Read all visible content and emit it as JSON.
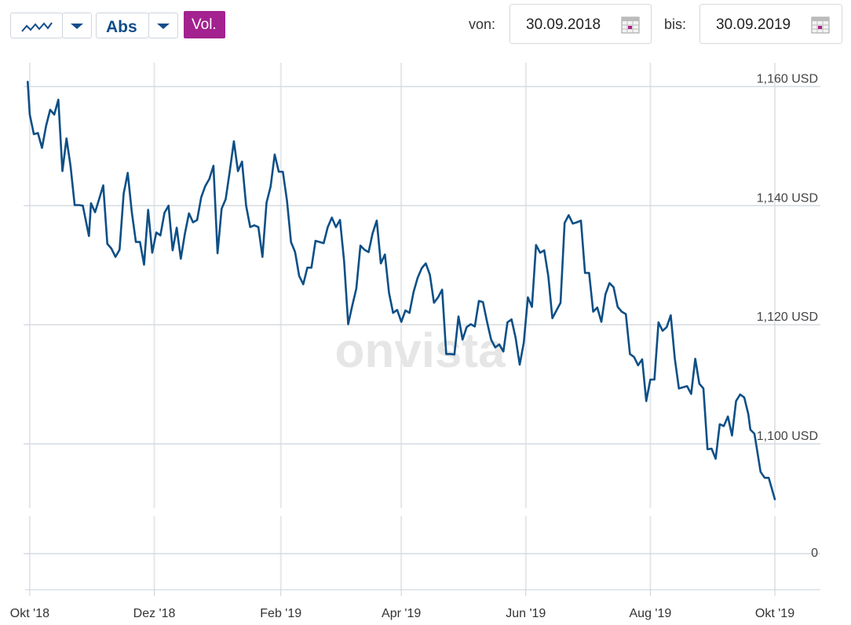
{
  "toolbar": {
    "chart_mode": "Abs",
    "volume_button": "Vol.",
    "from_label": "von:",
    "from_date": "30.09.2018",
    "to_label": "bis:",
    "to_date": "30.09.2019"
  },
  "watermark": "onvista",
  "chart_data": [
    {
      "type": "line",
      "color": "#0d4f86",
      "grid": true,
      "x": [
        -1,
        0,
        2,
        4,
        6,
        8,
        10,
        12,
        14,
        16,
        18,
        20,
        22,
        24,
        26,
        29,
        30,
        32,
        34,
        36,
        38,
        40,
        42,
        44,
        46,
        48,
        50,
        52,
        54,
        56,
        58,
        60,
        62,
        64,
        66,
        68,
        70,
        72,
        74,
        76,
        78,
        80,
        82,
        84,
        86,
        88,
        90,
        92,
        94,
        96,
        98,
        100,
        102,
        104,
        106,
        108,
        110,
        112,
        114,
        116,
        118,
        120,
        122,
        124,
        126,
        128,
        130,
        132,
        134,
        136,
        138,
        140,
        142,
        144,
        146,
        148,
        150,
        152,
        154,
        156,
        158,
        160,
        162,
        164,
        166,
        168,
        170,
        172,
        174,
        176,
        178,
        180,
        182,
        184,
        186,
        188,
        190,
        192,
        194,
        196,
        198,
        200,
        202,
        204,
        206,
        208,
        210,
        212,
        214,
        216,
        218,
        220,
        222,
        224,
        226,
        228,
        230,
        232,
        234,
        236,
        238,
        240,
        242,
        244,
        246,
        248,
        250,
        252,
        254,
        256,
        258,
        260,
        262,
        264,
        266,
        268,
        270,
        272,
        274,
        276,
        278,
        280,
        282,
        284,
        286,
        288,
        290,
        292,
        294,
        296,
        298,
        300,
        302,
        304,
        306,
        308,
        310,
        312,
        314,
        316,
        318,
        320,
        322,
        324,
        326,
        328,
        330,
        332,
        334,
        336,
        338,
        340,
        342,
        344,
        346,
        348,
        350,
        352,
        353,
        355,
        356,
        358,
        360,
        362,
        365
      ],
      "values": [
        1160.8,
        1155.3,
        1152.0,
        1152.2,
        1149.7,
        1153.4,
        1156.1,
        1155.3,
        1157.8,
        1145.8,
        1151.3,
        1146.6,
        1140.1,
        1140.1,
        1140.0,
        1134.9,
        1140.4,
        1138.9,
        1141.1,
        1143.4,
        1133.6,
        1132.8,
        1131.4,
        1132.6,
        1142.0,
        1145.5,
        1138.9,
        1133.9,
        1133.9,
        1130.1,
        1139.3,
        1132.1,
        1135.5,
        1135.0,
        1138.8,
        1140.0,
        1132.5,
        1136.3,
        1131.1,
        1135.3,
        1138.7,
        1137.2,
        1137.6,
        1141.4,
        1143.3,
        1144.5,
        1146.7,
        1132.0,
        1139.5,
        1141.1,
        1145.8,
        1150.8,
        1145.8,
        1147.4,
        1140.0,
        1136.4,
        1136.7,
        1136.4,
        1131.4,
        1140.5,
        1143.2,
        1148.6,
        1145.7,
        1145.7,
        1140.9,
        1133.9,
        1132.2,
        1128.2,
        1126.8,
        1129.6,
        1129.6,
        1134.1,
        1133.9,
        1133.7,
        1136.4,
        1138.0,
        1136.4,
        1137.6,
        1130.7,
        1120.1,
        1123.2,
        1126.1,
        1133.3,
        1132.6,
        1132.2,
        1135.4,
        1137.5,
        1130.3,
        1131.8,
        1125.4,
        1122.0,
        1122.5,
        1120.5,
        1122.4,
        1122.0,
        1125.5,
        1127.9,
        1129.5,
        1130.3,
        1128.4,
        1123.7,
        1124.6,
        1125.9,
        1115.1,
        1115.1,
        1115.0,
        1121.4,
        1117.5,
        1119.6,
        1120.1,
        1119.7,
        1124.0,
        1123.8,
        1120.5,
        1117.5,
        1116.2,
        1116.7,
        1115.5,
        1120.4,
        1120.9,
        1117.8,
        1113.3,
        1117.0,
        1124.6,
        1123.0,
        1133.4,
        1132.1,
        1132.5,
        1128.2,
        1121.1,
        1122.4,
        1123.7,
        1137.1,
        1138.4,
        1137.0,
        1137.2,
        1137.5,
        1128.7,
        1128.7,
        1122.2,
        1122.9,
        1120.5,
        1125.1,
        1127.0,
        1126.3,
        1123.0,
        1122.2,
        1121.8,
        1115.1,
        1114.6,
        1113.2,
        1114.2,
        1107.2,
        1110.8,
        1110.8,
        1120.4,
        1119.0,
        1119.6,
        1121.6,
        1114.3,
        1109.3,
        1109.5,
        1109.7,
        1108.4,
        1114.3,
        1110.1,
        1109.3,
        1099.1,
        1099.2,
        1097.5,
        1103.3,
        1103.0,
        1104.6,
        1101.4,
        1107.2,
        1108.3,
        1107.8,
        1105.0,
        1102.4,
        1101.7,
        1099.6,
        1095.3,
        1094.3,
        1094.3,
        1090.7
      ],
      "xlim": [
        -1.5,
        365
      ],
      "xticks": [
        {
          "value": 0,
          "label": "Okt '18"
        },
        {
          "value": 61,
          "label": "Dez '18"
        },
        {
          "value": 123,
          "label": "Feb '19"
        },
        {
          "value": 182,
          "label": "Apr '19"
        },
        {
          "value": 243,
          "label": "Jun '19"
        },
        {
          "value": 304,
          "label": "Aug '19"
        },
        {
          "value": 365,
          "label": "Okt '19"
        }
      ],
      "ylim": [
        1090,
        1164
      ],
      "yticks": [
        {
          "value": 1100,
          "label": "1,100 USD"
        },
        {
          "value": 1120,
          "label": "1,120 USD"
        },
        {
          "value": 1140,
          "label": "1,140 USD"
        },
        {
          "value": 1160,
          "label": "1,160 USD"
        }
      ]
    },
    {
      "type": "bar",
      "yticks": [
        0
      ]
    }
  ]
}
